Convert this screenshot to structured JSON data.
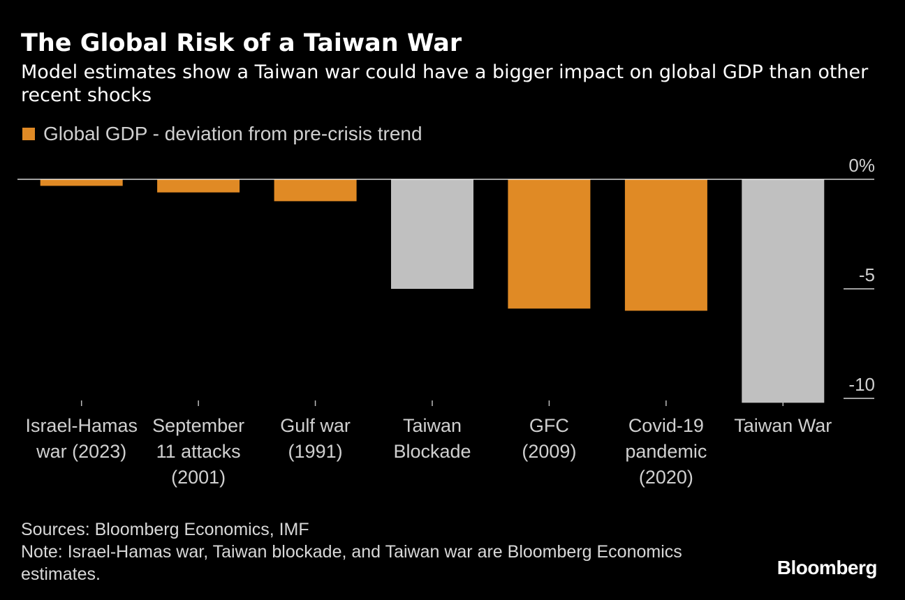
{
  "header": {
    "title": "The Global Risk of a Taiwan War",
    "subtitle": "Model estimates show a Taiwan war could have a bigger impact on global GDP than other recent shocks"
  },
  "legend": {
    "label": "Global GDP - deviation from pre-crisis trend",
    "color": "#e08a25"
  },
  "footer": {
    "sources": "Sources: Bloomberg Economics, IMF",
    "note": "Note: Israel-Hamas war, Taiwan blockade, and Taiwan war are Bloomberg Economics estimates."
  },
  "brand": "Bloomberg",
  "colors": {
    "background": "#000000",
    "historical": "#e08a25",
    "scenario": "#c0c0c0",
    "axis": "#ffffff",
    "text": "#d0d0d0"
  },
  "chart_data": {
    "type": "bar",
    "title": "The Global Risk of a Taiwan War",
    "subtitle": "Model estimates show a Taiwan war could have a bigger impact on global GDP than other recent shocks",
    "categories": [
      [
        "Israel-Hamas",
        "war (2023)"
      ],
      [
        "September",
        "11 attacks",
        "(2001)"
      ],
      [
        "Gulf war",
        "(1991)"
      ],
      [
        "Taiwan",
        "Blockade"
      ],
      [
        "GFC",
        "(2009)"
      ],
      [
        "Covid-19",
        "pandemic",
        "(2020)"
      ],
      [
        "Taiwan War"
      ]
    ],
    "series": [
      {
        "name": "Global GDP - deviation from pre-crisis trend",
        "values": [
          -0.3,
          -0.6,
          -1.0,
          -5.0,
          -5.9,
          -6.0,
          -10.2
        ]
      }
    ],
    "bar_colors": [
      "#e08a25",
      "#e08a25",
      "#e08a25",
      "#c0c0c0",
      "#e08a25",
      "#e08a25",
      "#c0c0c0"
    ],
    "ylim": [
      -10.2,
      0
    ],
    "yticks": [
      0,
      -5,
      -10
    ],
    "ytick_labels": [
      "0%",
      "-5",
      "-10"
    ],
    "xlabel": "",
    "ylabel": "",
    "grid": false,
    "legend_position": "top-left"
  }
}
